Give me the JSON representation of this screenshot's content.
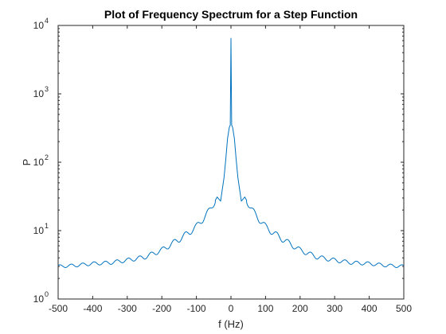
{
  "chart_data": {
    "type": "line",
    "title": "Plot of Frequency Spectrum for a Step Function",
    "xlabel": "f (Hz)",
    "ylabel": "P",
    "xlim": [
      -500,
      500
    ],
    "ylim": [
      1,
      10000
    ],
    "yscale": "log",
    "grid": false,
    "line_color": "#0072bd",
    "x_ticks": [
      -500,
      -400,
      -300,
      -200,
      -100,
      0,
      100,
      200,
      300,
      400,
      500
    ],
    "x_tick_labels": [
      "-500",
      "-400",
      "-300",
      "-200",
      "-100",
      "0",
      "100",
      "200",
      "300",
      "400",
      "500"
    ],
    "y_ticks": [
      1,
      10,
      100,
      1000,
      10000
    ],
    "y_tick_labels": [
      {
        "base": "10",
        "exp": "0"
      },
      {
        "base": "10",
        "exp": "1"
      },
      {
        "base": "10",
        "exp": "2"
      },
      {
        "base": "10",
        "exp": "3"
      },
      {
        "base": "10",
        "exp": "4"
      }
    ],
    "series": [
      {
        "x": [
          -500,
          -450,
          -400,
          -350,
          -300,
          -250,
          -200,
          -150,
          -120,
          -100,
          -80,
          -60,
          -50,
          -40,
          -30,
          -20,
          -15,
          -10,
          -5,
          -2,
          0,
          2,
          5,
          10,
          15,
          20,
          30,
          40,
          50,
          60,
          80,
          100,
          120,
          150,
          200,
          250,
          300,
          350,
          400,
          450,
          500
        ],
        "y": [
          3.0,
          3.1,
          3.3,
          3.4,
          3.7,
          4.1,
          5.2,
          7.5,
          9.5,
          11.5,
          15.0,
          20.5,
          25.0,
          31.0,
          27.0,
          60.0,
          110.0,
          220.0,
          320.0,
          350.0,
          6500.0,
          350.0,
          320.0,
          220.0,
          110.0,
          60.0,
          27.0,
          31.0,
          25.0,
          20.5,
          15.0,
          11.5,
          9.5,
          7.5,
          5.2,
          4.1,
          3.7,
          3.4,
          3.3,
          3.1,
          3.0
        ]
      }
    ]
  }
}
